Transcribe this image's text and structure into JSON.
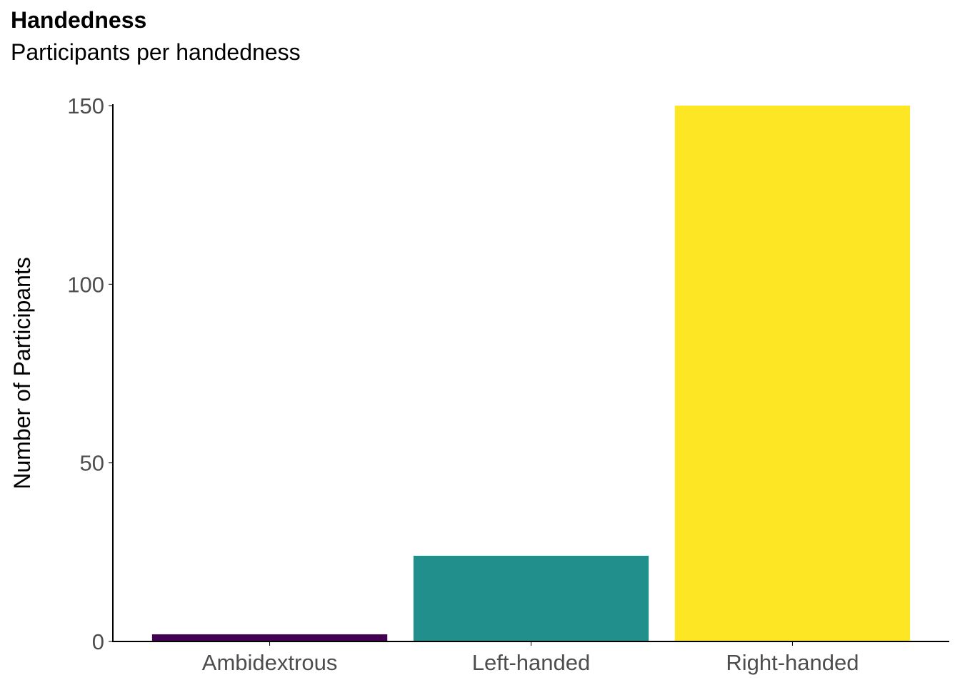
{
  "chart_data": {
    "type": "bar",
    "title": "Handedness",
    "subtitle": "Participants per handedness",
    "xlabel": "",
    "ylabel": "Number of Participants",
    "categories": [
      "Ambidextrous",
      "Left-handed",
      "Right-handed"
    ],
    "values": [
      2,
      24,
      150
    ],
    "colors": [
      "#440154",
      "#21908C",
      "#FDE725"
    ],
    "ylim": [
      0,
      150
    ],
    "yticks": [
      0,
      50,
      100,
      150
    ],
    "grid": false,
    "legend": "none"
  }
}
